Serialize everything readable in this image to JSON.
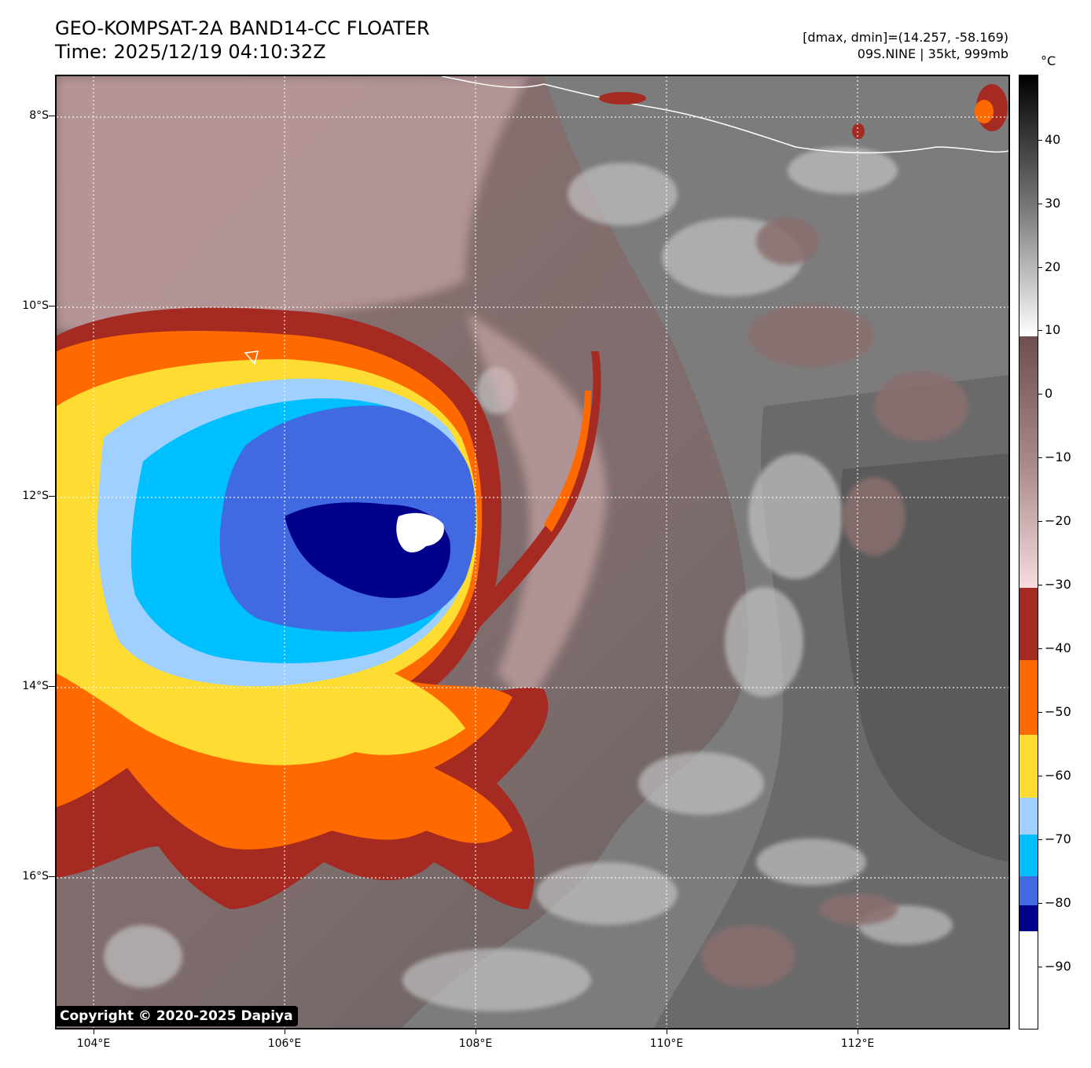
{
  "header": {
    "title_line1": "GEO-KOMPSAT-2A BAND14-CC FLOATER",
    "title_line2": "Time: 2025/12/19 04:10:32Z",
    "range_info": "[dmax, dmin]=(14.257, -58.169)",
    "storm_info": "09S.NINE | 35kt, 999mb"
  },
  "axes": {
    "lat_labels": [
      "8°S",
      "10°S",
      "12°S",
      "14°S",
      "16°S"
    ],
    "lon_labels": [
      "104°E",
      "106°E",
      "108°E",
      "110°E",
      "112°E"
    ]
  },
  "colorbar": {
    "unit": "°C",
    "tick_labels": [
      "40",
      "30",
      "20",
      "10",
      "0",
      "−10",
      "−20",
      "−30",
      "−40",
      "−50",
      "−60",
      "−70",
      "−80",
      "−90"
    ],
    "colors": {
      "warm_black": "#000000",
      "warm_gray": "#9a9a9a",
      "white": "#ffffff",
      "brown": "#7a5a5a",
      "pink": "#f2d6d8",
      "darkred": "#a52a22",
      "orange": "#ff6a00",
      "yellow": "#ffdc32",
      "lightblue": "#9fd0ff",
      "cyan": "#00bfff",
      "royalblue": "#4169e1",
      "navy": "#00008b",
      "eye_white": "#ffffff"
    }
  },
  "copyright": "Copyright © 2020-2025 Dapiya"
}
